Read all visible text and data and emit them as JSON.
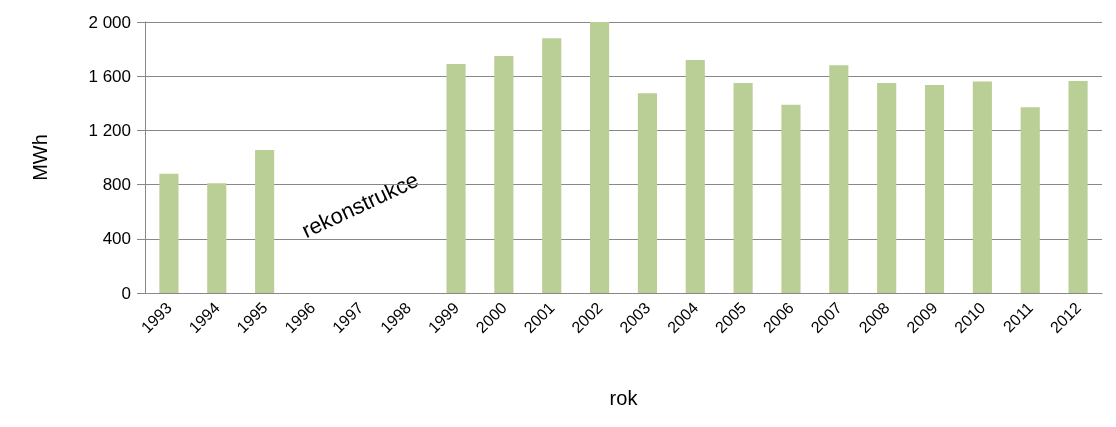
{
  "chart_data": {
    "type": "bar",
    "xlabel": "rok",
    "ylabel": "MWh",
    "categories": [
      "1993",
      "1994",
      "1995",
      "1996",
      "1997",
      "1998",
      "1999",
      "2000",
      "2001",
      "2002",
      "2003",
      "2004",
      "2005",
      "2006",
      "2007",
      "2008",
      "2009",
      "2010",
      "2011",
      "2012"
    ],
    "values": [
      880,
      810,
      1055,
      null,
      null,
      null,
      1690,
      1750,
      1880,
      2000,
      1475,
      1720,
      1550,
      1390,
      1680,
      1550,
      1535,
      1560,
      1370,
      1565
    ],
    "color": "#b9cf96",
    "ylim": [
      0,
      2000
    ],
    "yticks": [
      0,
      400,
      800,
      {
        "value": 1200,
        "label": "1 200"
      },
      {
        "value": 1600,
        "label": "1 600"
      },
      {
        "value": 2000,
        "label": "2 000"
      }
    ],
    "grid": "y",
    "annotations": [
      "rekonstrukce"
    ]
  }
}
